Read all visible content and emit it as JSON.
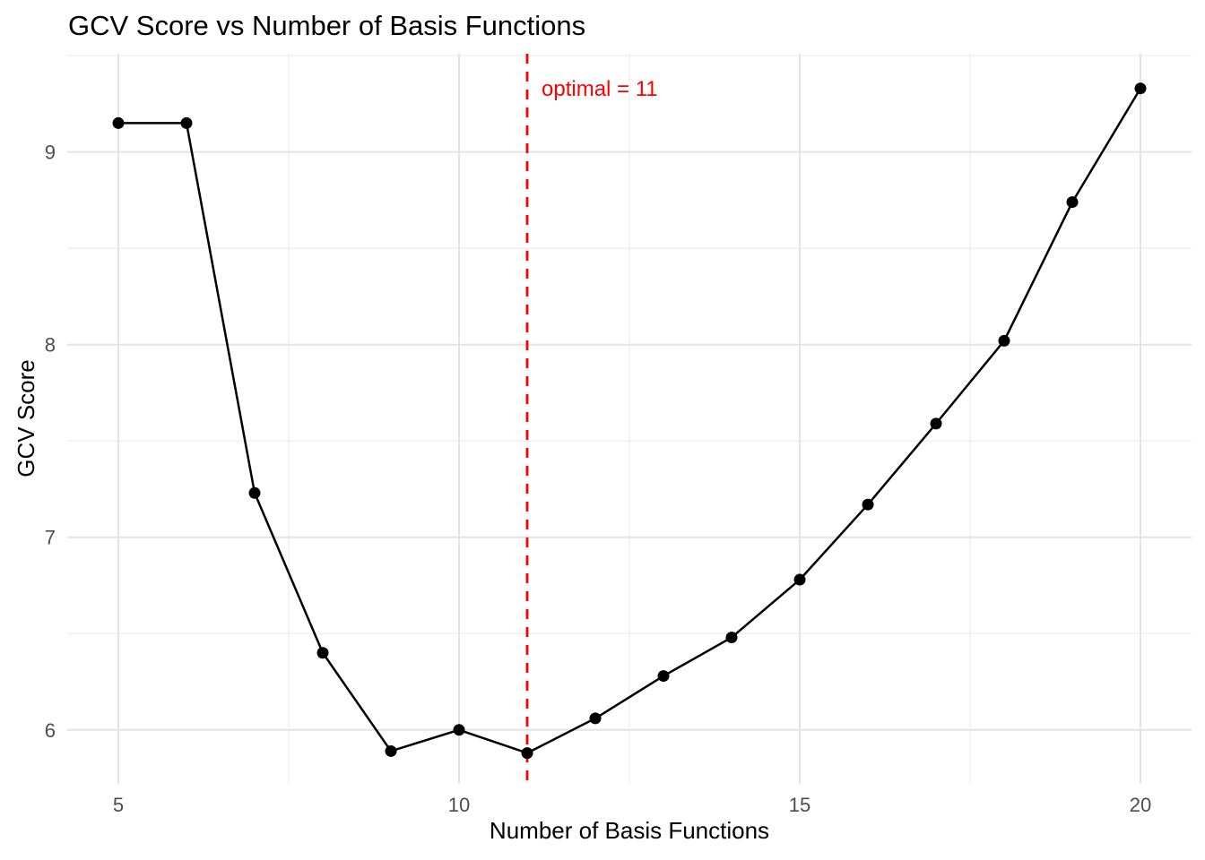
{
  "title": "GCV Score vs Number of Basis Functions",
  "axes": {
    "x_title": "Number of Basis Functions",
    "y_title": "GCV Score"
  },
  "annotation": {
    "text": "optimal = 11",
    "color": "#ff0000"
  },
  "chart_data": {
    "type": "line",
    "title": "GCV Score vs Number of Basis Functions",
    "xlabel": "Number of Basis Functions",
    "ylabel": "GCV Score",
    "x": [
      5,
      6,
      7,
      8,
      9,
      10,
      11,
      12,
      13,
      14,
      15,
      16,
      17,
      18,
      19,
      20
    ],
    "y": [
      9.15,
      9.15,
      7.23,
      6.4,
      5.89,
      6.0,
      5.88,
      6.06,
      6.28,
      6.48,
      6.78,
      7.17,
      7.59,
      8.02,
      8.74,
      9.33
    ],
    "series_name": "GCV score",
    "optimal_x": 11,
    "vline": {
      "x": 11,
      "style": "dashed",
      "color": "#ff0000"
    },
    "annotation_text": "optimal = 11",
    "x_ticks": [
      5,
      10,
      15,
      20
    ],
    "y_ticks": [
      6,
      7,
      8,
      9
    ],
    "x_minor_breaks": [
      7.5,
      12.5,
      17.5
    ],
    "y_minor_breaks": [
      6.5,
      7.5,
      8.5,
      9.5
    ],
    "xlim": [
      4.25,
      20.75
    ],
    "ylim": [
      5.72,
      9.51
    ],
    "grid": true,
    "legend": false,
    "colors": {
      "line": "#000000",
      "point": "#000000",
      "vline": "#ff0000",
      "major_grid": "#e4e4e4",
      "minor_grid": "#f0f0f0",
      "tick_label": "#4d4d4d",
      "title": "#000000",
      "background": "#ffffff"
    }
  }
}
